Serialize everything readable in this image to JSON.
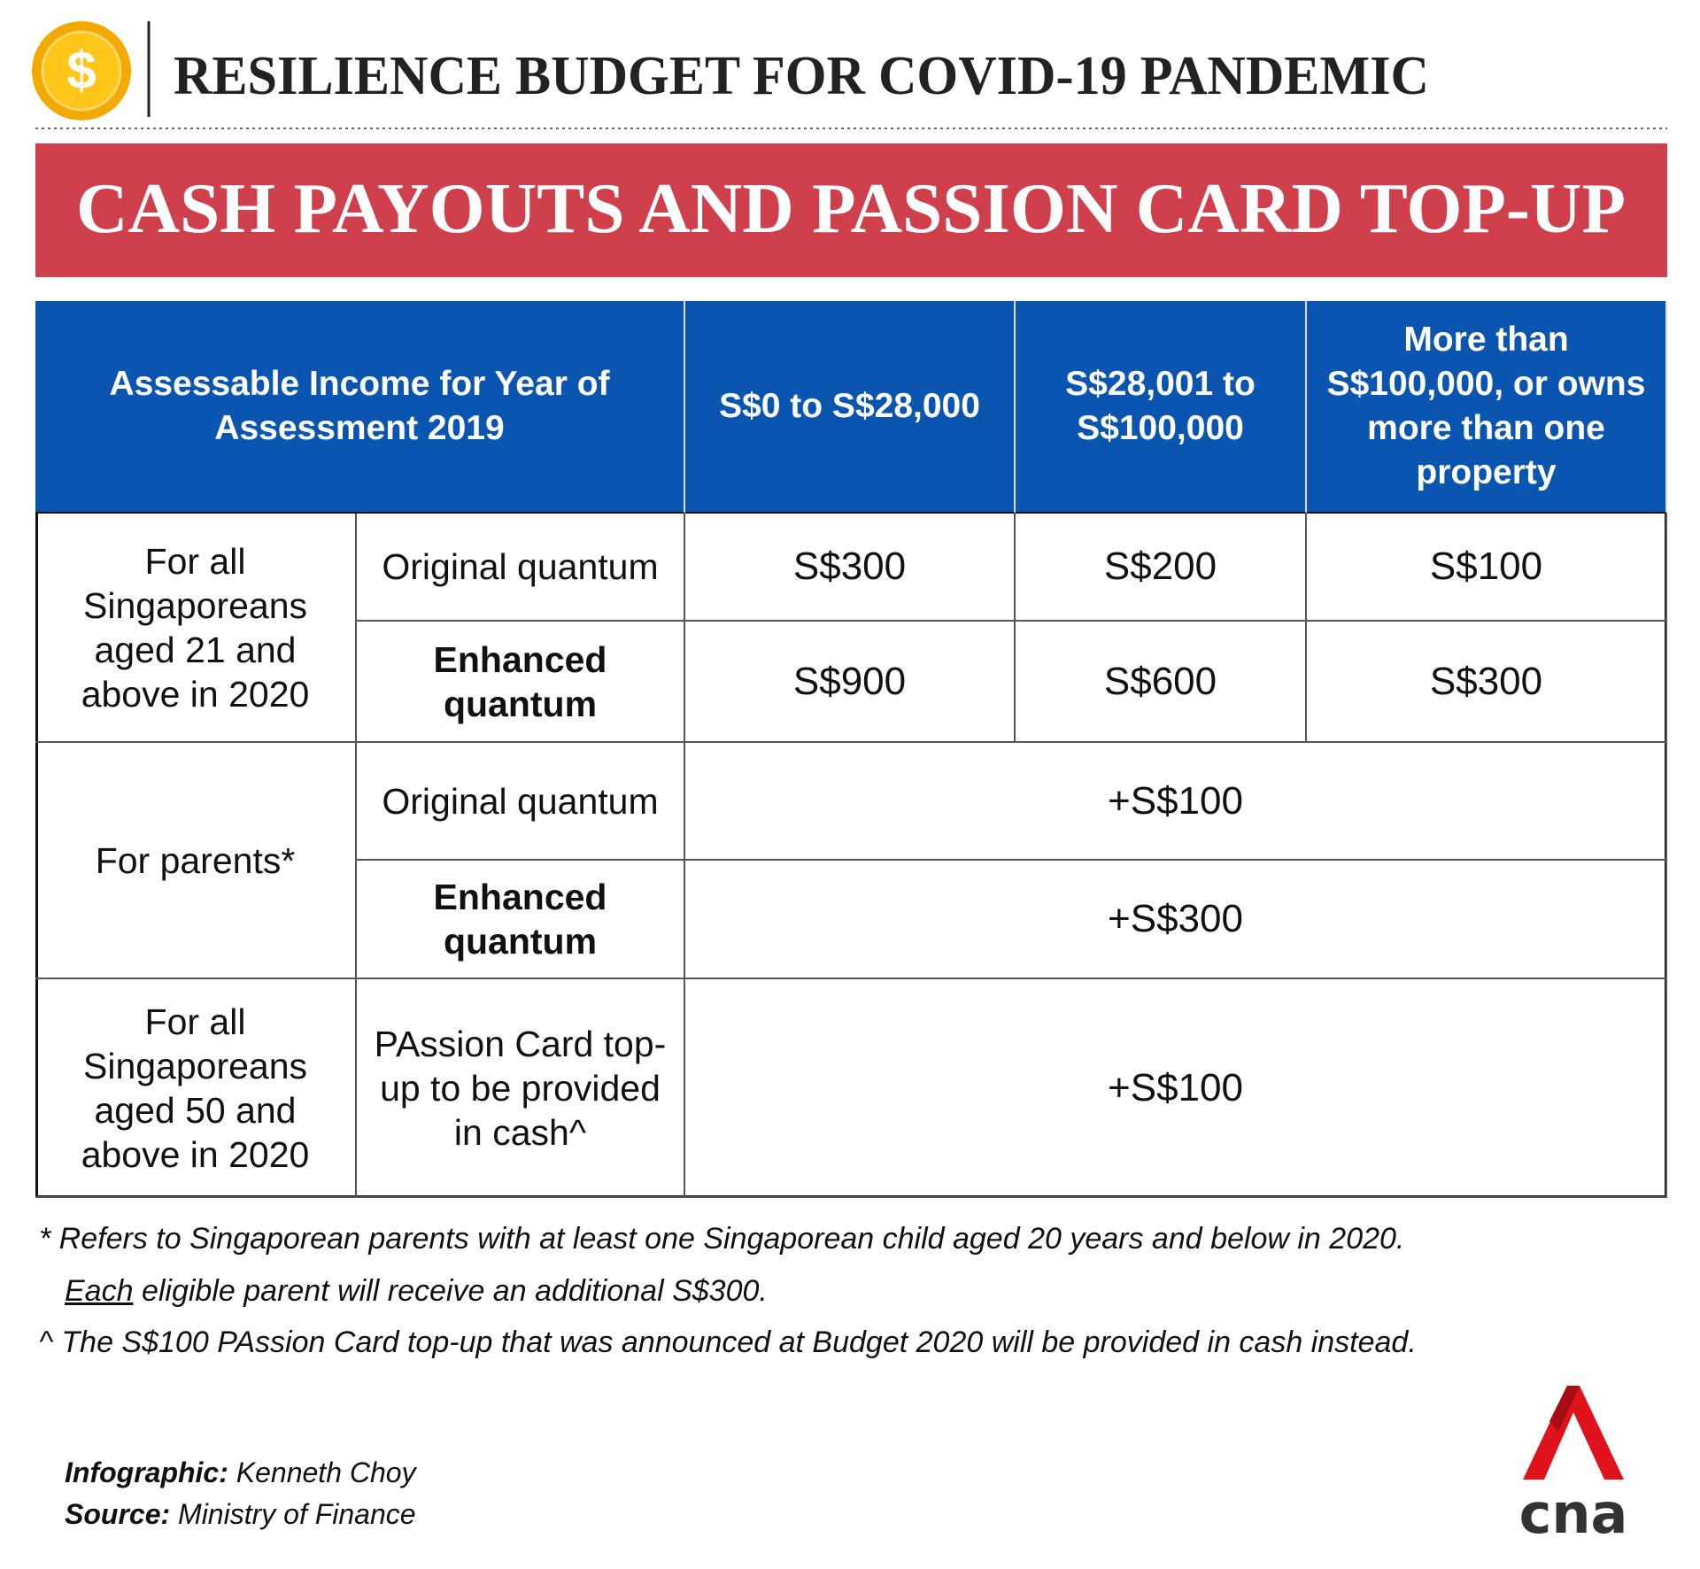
{
  "header": {
    "icon": "$",
    "title": "RESILIENCE BUDGET FOR COVID-19 PANDEMIC"
  },
  "banner": {
    "title": "CASH PAYOUTS AND PASSION CARD TOP-UP"
  },
  "table": {
    "header": [
      "Assessable Income for Year of Assessment 2019",
      "S$0 to S$28,000",
      "S$28,001 to S$100,000",
      "More than S$100,000, or owns more than one property"
    ],
    "groups": [
      {
        "label": "For all Singaporeans aged 21 and above in 2020",
        "rows": [
          {
            "label": "Original quantum",
            "values": [
              "S$300",
              "S$200",
              "S$100"
            ]
          },
          {
            "label": "Enhanced quantum",
            "values": [
              "S$900",
              "S$600",
              "S$300"
            ]
          }
        ]
      },
      {
        "label": "For parents*",
        "rows": [
          {
            "label": "Original quantum",
            "values": [
              "+S$100"
            ]
          },
          {
            "label": "Enhanced quantum",
            "values": [
              "+S$300"
            ]
          }
        ]
      },
      {
        "label": "For all Singaporeans aged 50 and above in 2020",
        "rows": [
          {
            "label": "PAssion Card top-up to be provided in cash^",
            "values": [
              "+S$100"
            ]
          }
        ]
      }
    ]
  },
  "footnotes": {
    "first": "* Refers to Singaporean parents with at least one Singaporean child aged 20 years and below in 2020.",
    "second_underlined": "Each",
    "second_rest": " eligible parent will receive an additional S$300.",
    "third": "^ The S$100 PAssion Card top-up that was announced at Budget 2020 will be provided in cash instead."
  },
  "credits": [
    {
      "label": "Infographic:",
      "name": " Kenneth Choy"
    },
    {
      "label": "Source:",
      "name": " Ministry of Finance"
    }
  ],
  "logo": {
    "text": "cna"
  }
}
